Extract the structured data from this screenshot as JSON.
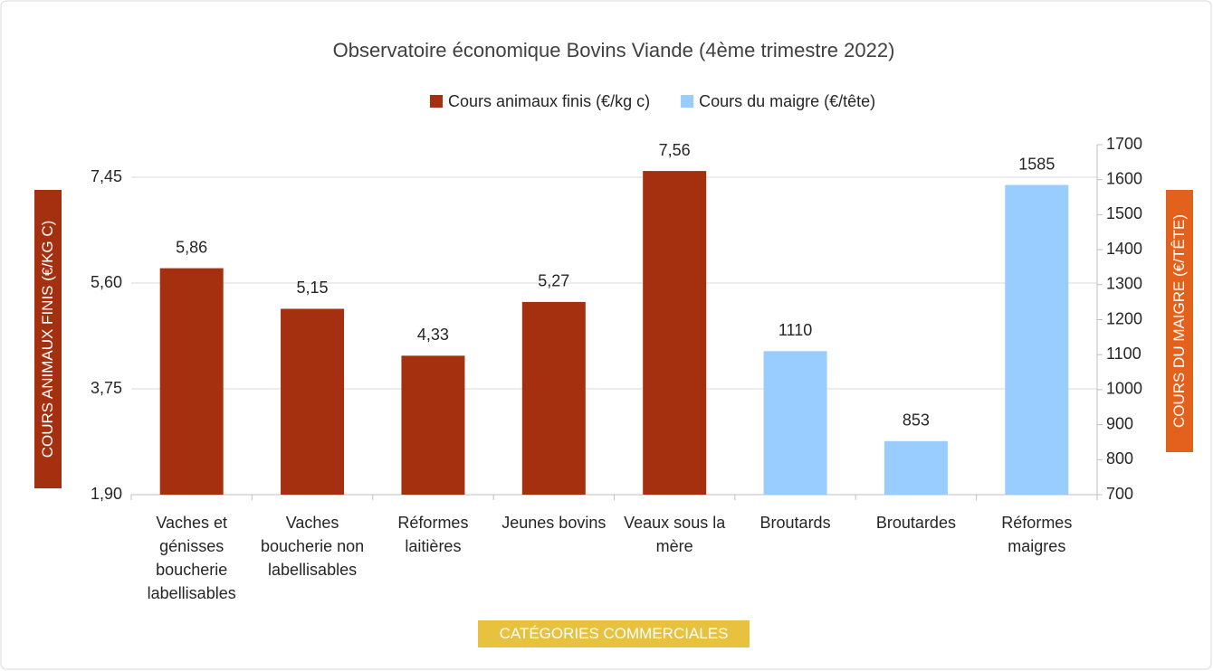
{
  "chart_data": {
    "type": "bar",
    "title": "Observatoire économique Bovins Viande (4ème trimestre 2022)",
    "categories": [
      "Vaches et génisses boucherie labellisables",
      "Vaches boucherie non labellisables",
      "Réformes laitières",
      "Jeunes bovins",
      "Veaux sous la mère",
      "Broutards",
      "Broutardes",
      "Réformes maigres"
    ],
    "series": [
      {
        "name": "Cours animaux finis (€/kg c)",
        "color": "#a5300f",
        "axis": "y",
        "values": [
          5.86,
          5.15,
          4.33,
          5.27,
          7.56,
          null,
          null,
          null
        ],
        "value_labels": [
          "5,86",
          "5,15",
          "4,33",
          "5,27",
          "7,56",
          null,
          null,
          null
        ]
      },
      {
        "name": "Cours du maigre (€/tête)",
        "color": "#99ccff",
        "axis": "y2",
        "values": [
          null,
          null,
          null,
          null,
          null,
          1110,
          853,
          1585
        ]
      }
    ],
    "ylabel": "COURS ANIMAUX FINIS (€/KG C)",
    "y2label": "COURS DU MAIGRE (€/TÊTE)",
    "xlabel": "CATÉGORIES COMMERCIALES",
    "ylim": [
      1.9,
      8.02
    ],
    "yticks": [
      {
        "value": 1.9,
        "label": "1,90"
      },
      {
        "value": 3.75,
        "label": "3,75"
      },
      {
        "value": 5.6,
        "label": "5,60"
      },
      {
        "value": 7.45,
        "label": "7,45"
      }
    ],
    "y2lim": [
      700,
      1700
    ],
    "y2ticks": [
      700,
      800,
      900,
      1000,
      1100,
      1200,
      1300,
      1400,
      1500,
      1600,
      1700
    ],
    "grid": true,
    "legend": "top"
  }
}
